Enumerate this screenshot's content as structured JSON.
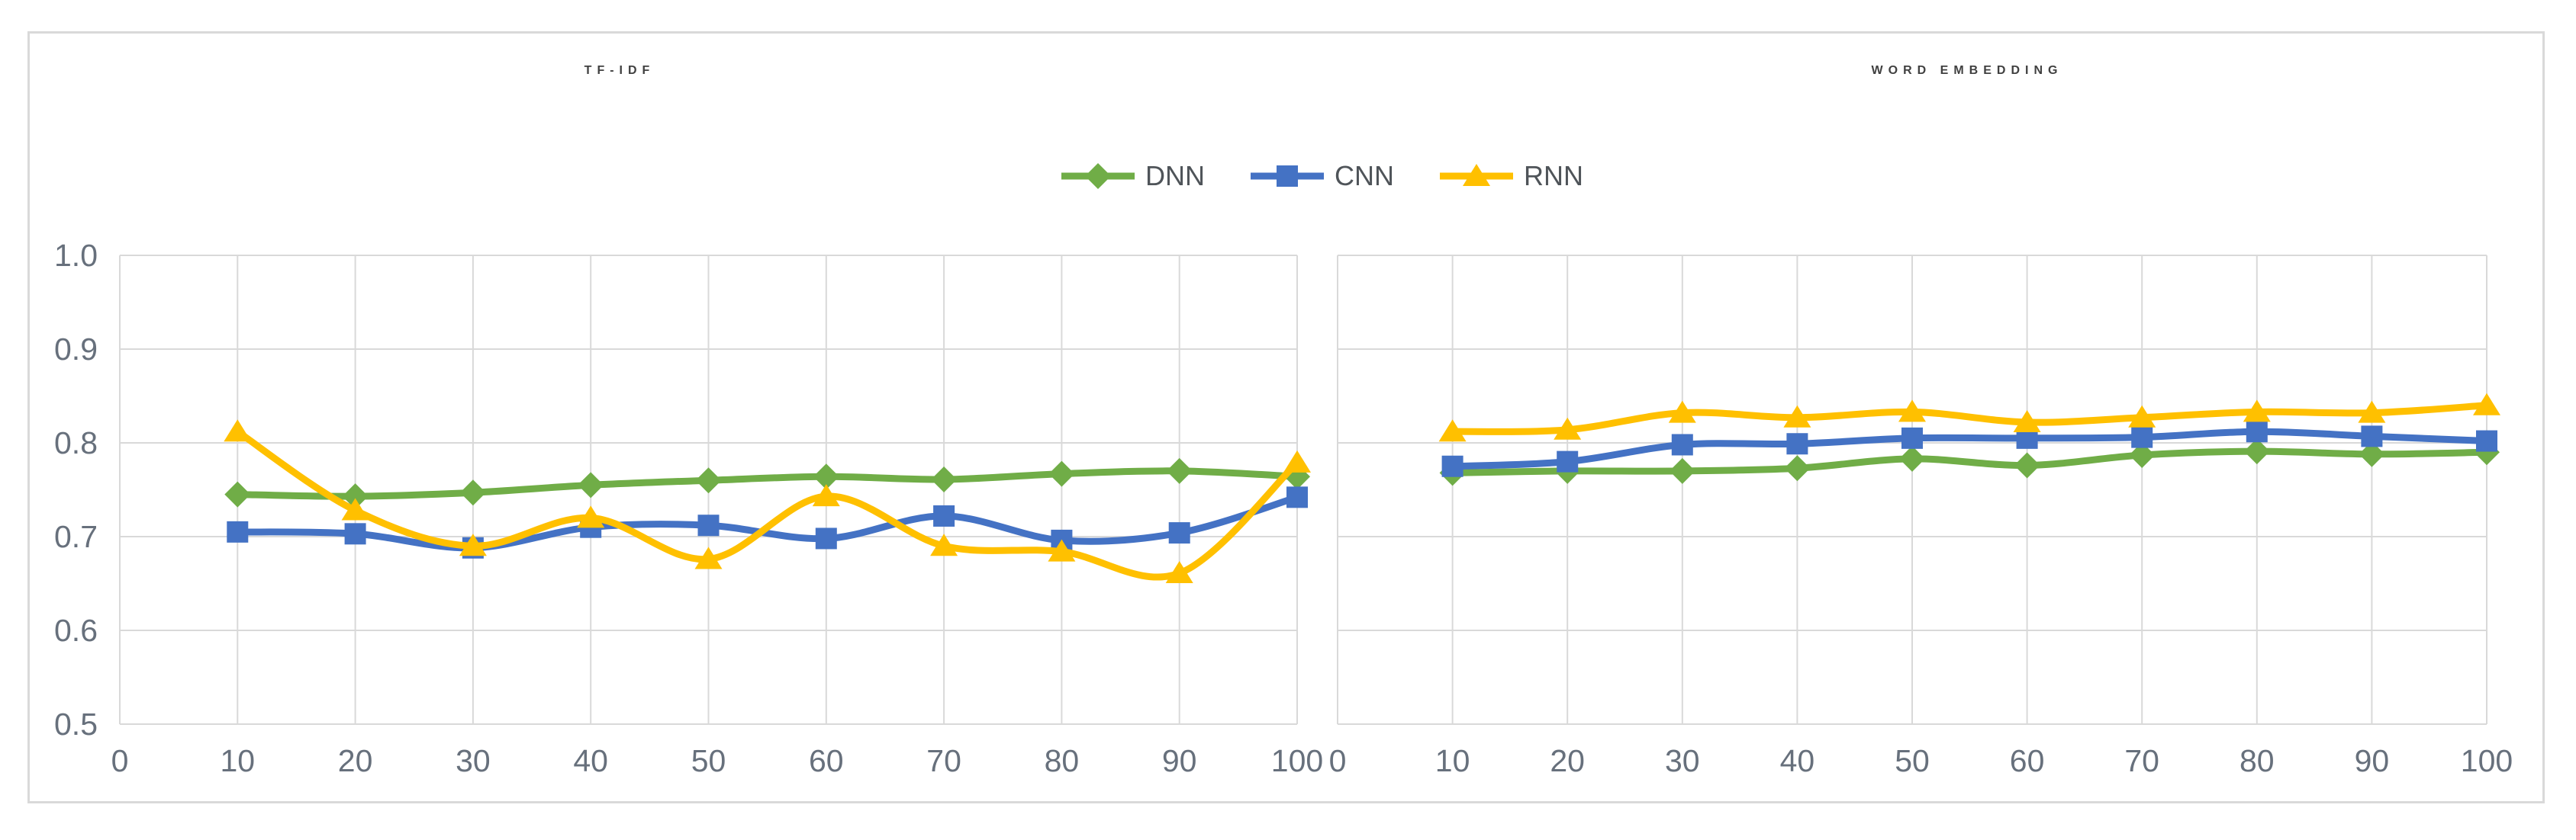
{
  "titles": {
    "left": "TF-IDF",
    "right": "WORD EMBEDDING"
  },
  "legend": {
    "items": [
      {
        "label": "DNN",
        "marker": "diamond",
        "color": "#70AD47"
      },
      {
        "label": "CNN",
        "marker": "square",
        "color": "#4472C4"
      },
      {
        "label": "RNN",
        "marker": "triangle",
        "color": "#FFC000"
      }
    ]
  },
  "axes": {
    "y_ticks": [
      "1.0",
      "0.9",
      "0.8",
      "0.7",
      "0.6",
      "0.5"
    ],
    "x_ticks": [
      "0",
      "10",
      "20",
      "30",
      "40",
      "50",
      "60",
      "70",
      "80",
      "90",
      "100"
    ]
  },
  "colors": {
    "grid": "#d9d9d9",
    "panel_border": "#d9d9d9",
    "title": "#404040",
    "tick_label": "#67707c",
    "legend_text": "#4f5459",
    "dnn": "#70AD47",
    "cnn": "#4472C4",
    "rnn": "#FFC000"
  },
  "chart_data": [
    {
      "type": "line",
      "title": "TF-IDF",
      "x": [
        10,
        20,
        30,
        40,
        50,
        60,
        70,
        80,
        90,
        100
      ],
      "xlabel": "",
      "ylabel": "",
      "ylim": [
        0.5,
        1.0
      ],
      "xlim": [
        0,
        100
      ],
      "grid": true,
      "legend_position": "top-center",
      "smooth_lines": true,
      "series": [
        {
          "name": "DNN",
          "color": "#70AD47",
          "marker": "diamond",
          "values": [
            0.745,
            0.743,
            0.747,
            0.755,
            0.76,
            0.764,
            0.761,
            0.767,
            0.77,
            0.764
          ]
        },
        {
          "name": "CNN",
          "color": "#4472C4",
          "marker": "square",
          "values": [
            0.705,
            0.703,
            0.688,
            0.71,
            0.712,
            0.698,
            0.722,
            0.696,
            0.704,
            0.742
          ]
        },
        {
          "name": "RNN",
          "color": "#FFC000",
          "marker": "triangle",
          "values": [
            0.812,
            0.728,
            0.69,
            0.72,
            0.676,
            0.743,
            0.69,
            0.684,
            0.661,
            0.779
          ]
        }
      ]
    },
    {
      "type": "line",
      "title": "WORD EMBEDDING",
      "x": [
        10,
        20,
        30,
        40,
        50,
        60,
        70,
        80,
        90,
        100
      ],
      "xlabel": "",
      "ylabel": "",
      "ylim": [
        0.5,
        1.0
      ],
      "xlim": [
        0,
        100
      ],
      "grid": true,
      "legend_position": "top-center",
      "smooth_lines": true,
      "series": [
        {
          "name": "DNN",
          "color": "#70AD47",
          "marker": "diamond",
          "values": [
            0.768,
            0.77,
            0.77,
            0.773,
            0.783,
            0.776,
            0.787,
            0.791,
            0.788,
            0.79
          ]
        },
        {
          "name": "CNN",
          "color": "#4472C4",
          "marker": "square",
          "values": [
            0.775,
            0.78,
            0.798,
            0.799,
            0.805,
            0.805,
            0.806,
            0.812,
            0.807,
            0.802
          ]
        },
        {
          "name": "RNN",
          "color": "#FFC000",
          "marker": "triangle",
          "values": [
            0.812,
            0.814,
            0.832,
            0.827,
            0.833,
            0.822,
            0.827,
            0.833,
            0.832,
            0.84
          ]
        }
      ]
    }
  ]
}
